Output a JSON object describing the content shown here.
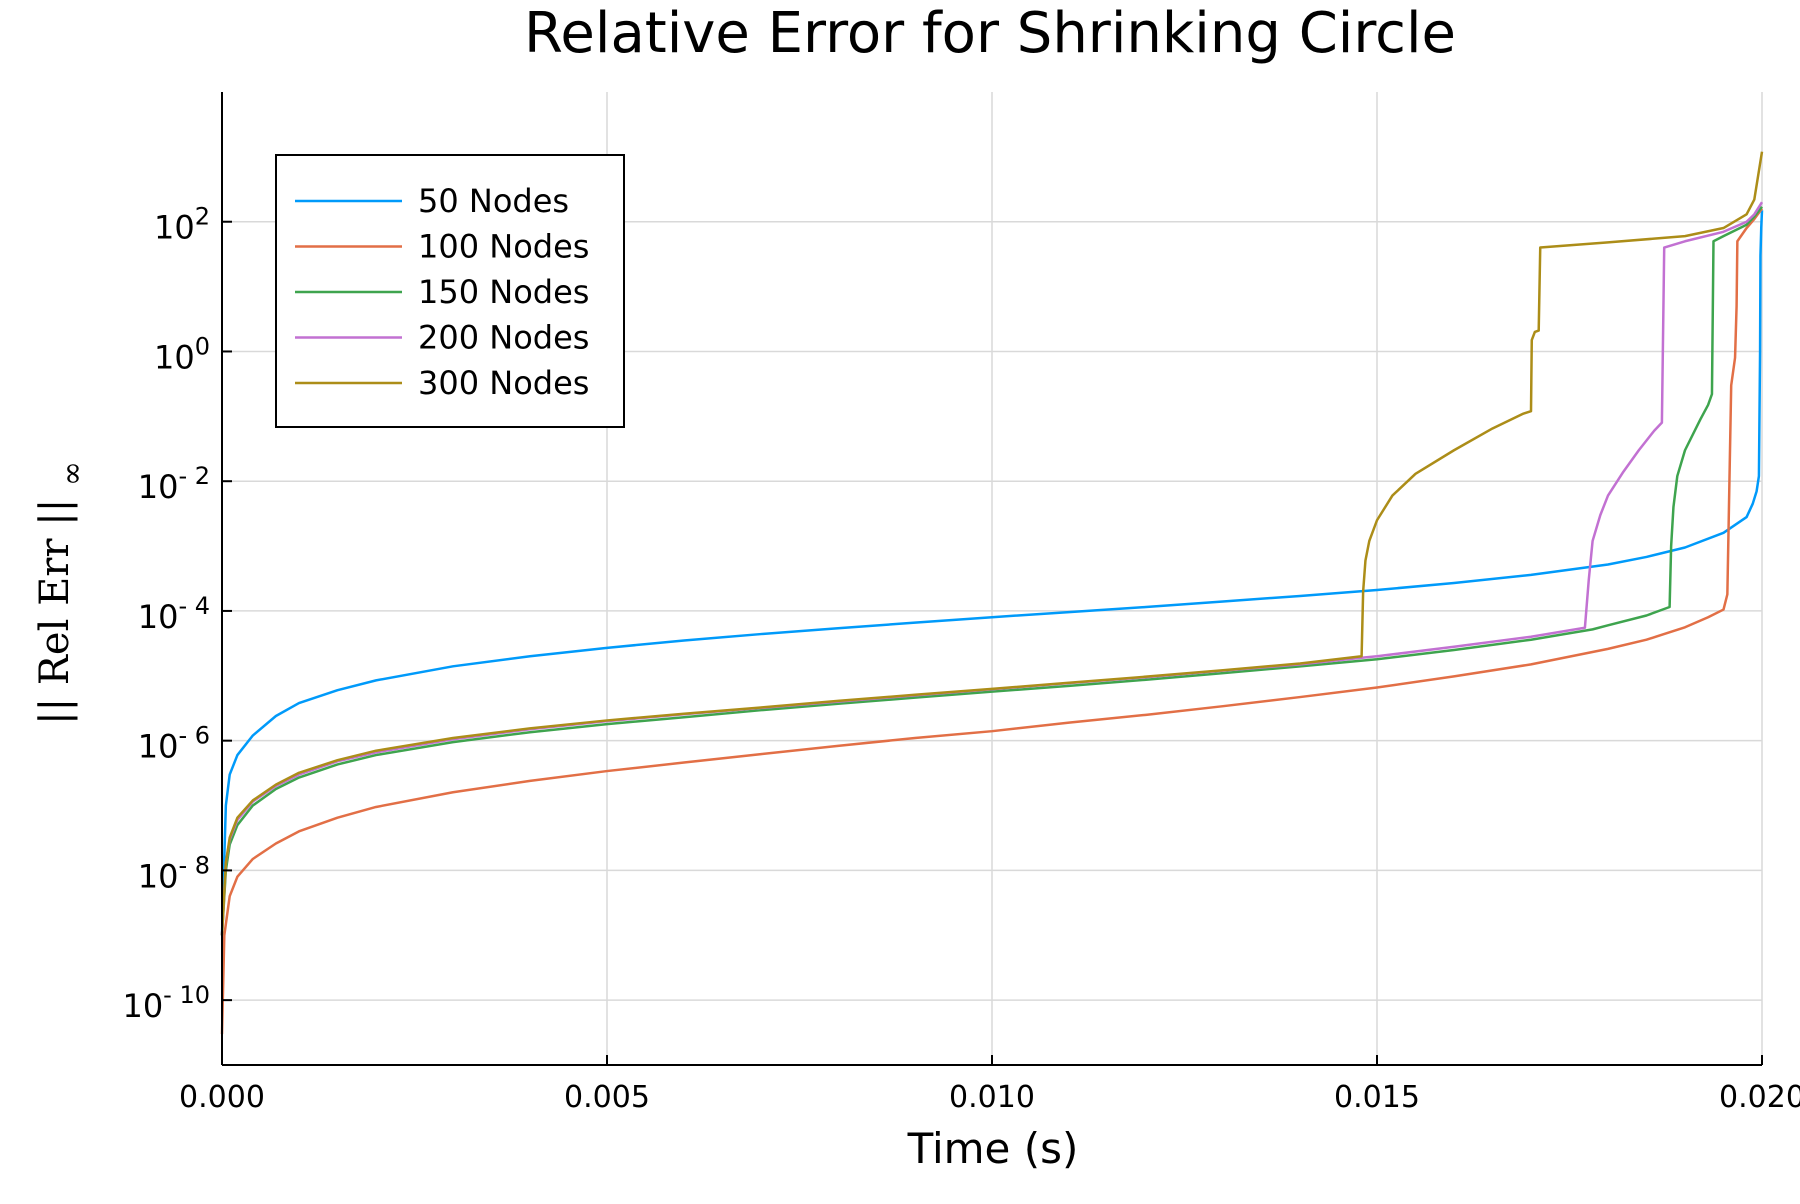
{
  "chart_data": {
    "type": "line",
    "title": "Relative Error for Shrinking Circle",
    "xlabel": "Time (s)",
    "ylabel": "|| Rel Err ||∞",
    "ylabel_parts": {
      "main": "|| Rel Err ||",
      "subscript": "∞"
    },
    "yscale": "log10",
    "xlim": [
      0.0,
      0.02
    ],
    "ylim": [
      1e-11,
      10000
    ],
    "xticks": [
      {
        "value": 0.0,
        "label": "0.000"
      },
      {
        "value": 0.005,
        "label": "0.005"
      },
      {
        "value": 0.01,
        "label": "0.010"
      },
      {
        "value": 0.015,
        "label": "0.015"
      },
      {
        "value": 0.02,
        "label": "0.020"
      }
    ],
    "yticks": [
      {
        "value": 1e-10,
        "base": "10",
        "exp": "- 10"
      },
      {
        "value": 1e-08,
        "base": "10",
        "exp": "- 8"
      },
      {
        "value": 1e-06,
        "base": "10",
        "exp": "- 6"
      },
      {
        "value": 0.0001,
        "base": "10",
        "exp": "- 4"
      },
      {
        "value": 0.01,
        "base": "10",
        "exp": "- 2"
      },
      {
        "value": 1,
        "base": "10",
        "exp": "0"
      },
      {
        "value": 100,
        "base": "10",
        "exp": "2"
      }
    ],
    "grid": true,
    "legend_position": "top-left",
    "series": [
      {
        "name": "50 Nodes",
        "color": "#009AFA",
        "points": [
          [
            0,
            1e-09
          ],
          [
            5e-05,
            1e-07
          ],
          [
            0.0001,
            3e-07
          ],
          [
            0.0002,
            6e-07
          ],
          [
            0.0004,
            1.2e-06
          ],
          [
            0.0007,
            2.4e-06
          ],
          [
            0.001,
            3.8e-06
          ],
          [
            0.0015,
            6e-06
          ],
          [
            0.002,
            8.5e-06
          ],
          [
            0.003,
            1.4e-05
          ],
          [
            0.004,
            2e-05
          ],
          [
            0.005,
            2.7e-05
          ],
          [
            0.006,
            3.5e-05
          ],
          [
            0.007,
            4.4e-05
          ],
          [
            0.008,
            5.4e-05
          ],
          [
            0.009,
            6.6e-05
          ],
          [
            0.01,
            8e-05
          ],
          [
            0.011,
            9.6e-05
          ],
          [
            0.012,
            0.000115
          ],
          [
            0.013,
            0.00014
          ],
          [
            0.014,
            0.00017
          ],
          [
            0.015,
            0.00021
          ],
          [
            0.016,
            0.00027
          ],
          [
            0.017,
            0.00036
          ],
          [
            0.018,
            0.00052
          ],
          [
            0.0185,
            0.00068
          ],
          [
            0.019,
            0.00095
          ],
          [
            0.0195,
            0.0016
          ],
          [
            0.0198,
            0.0028
          ],
          [
            0.01988,
            0.0045
          ],
          [
            0.01993,
            0.007
          ],
          [
            0.01996,
            0.012
          ],
          [
            0.019975,
            1
          ],
          [
            0.01998,
            30
          ],
          [
            0.01999,
            80
          ],
          [
            0.02,
            150
          ]
        ]
      },
      {
        "name": "100 Nodes",
        "color": "#E26F46",
        "points": [
          [
            0,
            3e-11
          ],
          [
            3e-05,
            1e-09
          ],
          [
            0.0001,
            4e-09
          ],
          [
            0.0002,
            8e-09
          ],
          [
            0.0004,
            1.5e-08
          ],
          [
            0.0007,
            2.6e-08
          ],
          [
            0.001,
            4e-08
          ],
          [
            0.0015,
            6.5e-08
          ],
          [
            0.002,
            9.5e-08
          ],
          [
            0.003,
            1.6e-07
          ],
          [
            0.004,
            2.4e-07
          ],
          [
            0.005,
            3.4e-07
          ],
          [
            0.006,
            4.6e-07
          ],
          [
            0.007,
            6.2e-07
          ],
          [
            0.008,
            8.3e-07
          ],
          [
            0.009,
            1.1e-06
          ],
          [
            0.01,
            1.4e-06
          ],
          [
            0.011,
            1.9e-06
          ],
          [
            0.012,
            2.5e-06
          ],
          [
            0.013,
            3.4e-06
          ],
          [
            0.014,
            4.7e-06
          ],
          [
            0.015,
            6.6e-06
          ],
          [
            0.016,
            9.8e-06
          ],
          [
            0.017,
            1.5e-05
          ],
          [
            0.018,
            2.6e-05
          ],
          [
            0.0185,
            3.6e-05
          ],
          [
            0.019,
            5.6e-05
          ],
          [
            0.0193,
            8e-05
          ],
          [
            0.0195,
            0.000105
          ],
          [
            0.01955,
            0.00018
          ],
          [
            0.0196,
            0.3
          ],
          [
            0.01965,
            0.8
          ],
          [
            0.01967,
            5
          ],
          [
            0.01968,
            50
          ],
          [
            0.0198,
            80
          ],
          [
            0.0199,
            110
          ],
          [
            0.02,
            160
          ]
        ]
      },
      {
        "name": "150 Nodes",
        "color": "#3EA44E",
        "points": [
          [
            0,
            1e-09
          ],
          [
            5e-05,
            1e-08
          ],
          [
            0.0001,
            2.5e-08
          ],
          [
            0.0002,
            5e-08
          ],
          [
            0.0004,
            1e-07
          ],
          [
            0.0007,
            1.8e-07
          ],
          [
            0.001,
            2.7e-07
          ],
          [
            0.0015,
            4.3e-07
          ],
          [
            0.002,
            6e-07
          ],
          [
            0.003,
            9.5e-07
          ],
          [
            0.004,
            1.35e-06
          ],
          [
            0.005,
            1.8e-06
          ],
          [
            0.006,
            2.3e-06
          ],
          [
            0.007,
            2.95e-06
          ],
          [
            0.008,
            3.7e-06
          ],
          [
            0.009,
            4.6e-06
          ],
          [
            0.01,
            5.7e-06
          ],
          [
            0.011,
            7e-06
          ],
          [
            0.012,
            8.7e-06
          ],
          [
            0.013,
            1.1e-05
          ],
          [
            0.014,
            1.4e-05
          ],
          [
            0.015,
            1.8e-05
          ],
          [
            0.016,
            2.5e-05
          ],
          [
            0.017,
            3.6e-05
          ],
          [
            0.0178,
            5.2e-05
          ],
          [
            0.018,
            6e-05
          ],
          [
            0.0185,
            8.5e-05
          ],
          [
            0.0188,
            0.000115
          ],
          [
            0.01882,
            0.001
          ],
          [
            0.01885,
            0.004
          ],
          [
            0.0189,
            0.012
          ],
          [
            0.019,
            0.03
          ],
          [
            0.0192,
            0.09
          ],
          [
            0.0193,
            0.15
          ],
          [
            0.01935,
            0.22
          ],
          [
            0.01937,
            50
          ],
          [
            0.0195,
            60
          ],
          [
            0.0198,
            90
          ],
          [
            0.0199,
            120
          ],
          [
            0.02,
            170
          ]
        ]
      },
      {
        "name": "200 Nodes",
        "color": "#C271D2",
        "points": [
          [
            0,
            1e-09
          ],
          [
            5e-05,
            1.3e-08
          ],
          [
            0.0001,
            3e-08
          ],
          [
            0.0002,
            6e-08
          ],
          [
            0.0004,
            1.15e-07
          ],
          [
            0.0007,
            2e-07
          ],
          [
            0.001,
            3e-07
          ],
          [
            0.0015,
            4.8e-07
          ],
          [
            0.002,
            6.6e-07
          ],
          [
            0.003,
            1.05e-06
          ],
          [
            0.004,
            1.5e-06
          ],
          [
            0.005,
            2e-06
          ],
          [
            0.006,
            2.55e-06
          ],
          [
            0.007,
            3.2e-06
          ],
          [
            0.008,
            4e-06
          ],
          [
            0.009,
            5e-06
          ],
          [
            0.01,
            6.2e-06
          ],
          [
            0.011,
            7.7e-06
          ],
          [
            0.012,
            9.5e-06
          ],
          [
            0.013,
            1.2e-05
          ],
          [
            0.014,
            1.5e-05
          ],
          [
            0.0148,
            1.9e-05
          ],
          [
            0.015,
            2e-05
          ],
          [
            0.016,
            2.8e-05
          ],
          [
            0.017,
            4e-05
          ],
          [
            0.0177,
            5.5e-05
          ],
          [
            0.01775,
            0.0003
          ],
          [
            0.0178,
            0.0012
          ],
          [
            0.0179,
            0.003
          ],
          [
            0.018,
            0.006
          ],
          [
            0.0182,
            0.014
          ],
          [
            0.0184,
            0.03
          ],
          [
            0.0186,
            0.06
          ],
          [
            0.0187,
            0.08
          ],
          [
            0.01873,
            40
          ],
          [
            0.019,
            50
          ],
          [
            0.0195,
            70
          ],
          [
            0.0198,
            100
          ],
          [
            0.0199,
            130
          ],
          [
            0.02,
            200
          ]
        ]
      },
      {
        "name": "300 Nodes",
        "color": "#AC8D18",
        "points": [
          [
            0,
            1e-09
          ],
          [
            5e-05,
            1.3e-08
          ],
          [
            0.0001,
            3.2e-08
          ],
          [
            0.0002,
            6.5e-08
          ],
          [
            0.0004,
            1.2e-07
          ],
          [
            0.0007,
            2.1e-07
          ],
          [
            0.001,
            3.2e-07
          ],
          [
            0.0015,
            5e-07
          ],
          [
            0.002,
            7e-07
          ],
          [
            0.003,
            1.1e-06
          ],
          [
            0.004,
            1.55e-06
          ],
          [
            0.005,
            2.05e-06
          ],
          [
            0.006,
            2.6e-06
          ],
          [
            0.007,
            3.25e-06
          ],
          [
            0.008,
            4.1e-06
          ],
          [
            0.009,
            5.1e-06
          ],
          [
            0.01,
            6.3e-06
          ],
          [
            0.011,
            7.8e-06
          ],
          [
            0.012,
            9.7e-06
          ],
          [
            0.013,
            1.22e-05
          ],
          [
            0.014,
            1.55e-05
          ],
          [
            0.0148,
            2e-05
          ],
          [
            0.01482,
            0.0002
          ],
          [
            0.01485,
            0.0006
          ],
          [
            0.0149,
            0.0012
          ],
          [
            0.015,
            0.0025
          ],
          [
            0.0152,
            0.006
          ],
          [
            0.0155,
            0.013
          ],
          [
            0.016,
            0.03
          ],
          [
            0.0165,
            0.065
          ],
          [
            0.0169,
            0.11
          ],
          [
            0.017,
            0.12
          ],
          [
            0.01701,
            1.5
          ],
          [
            0.01705,
            2
          ],
          [
            0.0171,
            2.1
          ],
          [
            0.01712,
            40
          ],
          [
            0.018,
            48
          ],
          [
            0.019,
            60
          ],
          [
            0.0195,
            80
          ],
          [
            0.0198,
            130
          ],
          [
            0.0199,
            220
          ],
          [
            0.02,
            1200
          ]
        ]
      }
    ]
  }
}
